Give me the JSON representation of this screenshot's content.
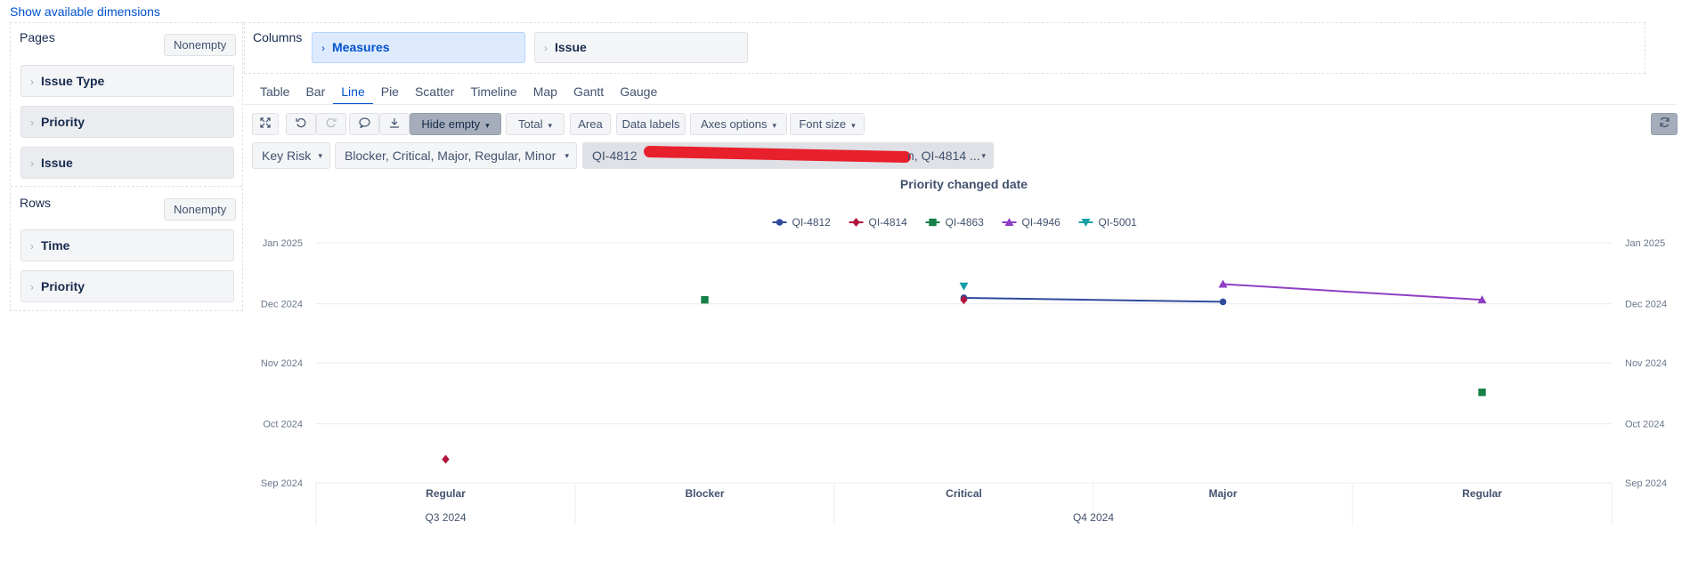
{
  "top_link": "Show available dimensions",
  "pages": {
    "label": "Pages",
    "nonempty_label": "Nonempty",
    "items": [
      {
        "label": "Issue Type"
      },
      {
        "label": "Priority"
      },
      {
        "label": "Issue"
      }
    ]
  },
  "rows": {
    "label": "Rows",
    "nonempty_label": "Nonempty",
    "items": [
      {
        "label": "Time"
      },
      {
        "label": "Priority"
      }
    ]
  },
  "columns": {
    "label": "Columns",
    "items": [
      {
        "label": "Measures"
      },
      {
        "label": "Issue"
      }
    ]
  },
  "tabs": [
    "Table",
    "Bar",
    "Line",
    "Pie",
    "Scatter",
    "Timeline",
    "Map",
    "Gantt",
    "Gauge"
  ],
  "active_tab": "Line",
  "toolbar": {
    "hide_empty": "Hide empty",
    "total": "Total",
    "area": "Area",
    "data_labels": "Data labels",
    "axes_options": "Axes options",
    "font_size": "Font size"
  },
  "filters": {
    "measure": "Key Risk",
    "priorities": "Blocker, Critical, Major, Regular, Minor",
    "issues_start": "QI-4812",
    "issues_end": "n, QI-4814 ..."
  },
  "colors": {
    "accent": "#0052cc",
    "column_selected_bg": "#deebff"
  },
  "chart_data": {
    "type": "line",
    "title": "Priority changed date",
    "legend_position": "top-center",
    "categories": [
      "Regular",
      "Blocker",
      "Critical",
      "Major",
      "Regular"
    ],
    "category_groups": [
      {
        "label": "Q3 2024",
        "span": 1
      },
      {
        "label": "Q4 2024",
        "span": 4
      }
    ],
    "y_ticks": [
      "Sep 2024",
      "Oct 2024",
      "Nov 2024",
      "Dec 2024",
      "Jan 2025"
    ],
    "y_range": [
      "2024-09-01",
      "2025-01-01"
    ],
    "grid": true,
    "series": [
      {
        "name": "QI-4812",
        "color": "#2f4b9c",
        "marker": "circle",
        "values": [
          null,
          null,
          "2024-12-04",
          "2024-12-02",
          null
        ]
      },
      {
        "name": "QI-4814",
        "color": "#b0153b",
        "marker": "diamond",
        "values": [
          "2024-09-13",
          null,
          "2024-12-03",
          null,
          null
        ]
      },
      {
        "name": "QI-4863",
        "color": "#168048",
        "marker": "square",
        "values": [
          null,
          "2024-12-03",
          null,
          null,
          "2024-10-17"
        ]
      },
      {
        "name": "QI-4946",
        "color": "#8f3fc4",
        "marker": "triangle",
        "values": [
          null,
          null,
          null,
          "2024-12-11",
          "2024-12-03"
        ]
      },
      {
        "name": "QI-5001",
        "color": "#16a0a6",
        "marker": "triangle-down",
        "values": [
          null,
          null,
          "2024-12-10",
          null,
          null
        ]
      }
    ]
  }
}
